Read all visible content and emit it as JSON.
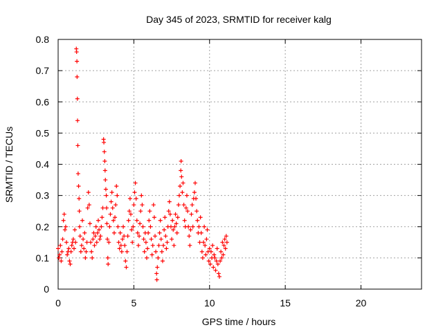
{
  "chart_data": {
    "type": "scatter",
    "title": "Day 345 of 2023, SRMTID for receiver kalg",
    "xlabel": "GPS time / hours",
    "ylabel": "SRMTID / TECUs",
    "xlim": [
      0,
      24
    ],
    "ylim": [
      0,
      0.8
    ],
    "xticks": [
      0,
      5,
      10,
      15,
      20
    ],
    "yticks": [
      0,
      0.1,
      0.2,
      0.3,
      0.4,
      0.5,
      0.6,
      0.7,
      0.8
    ],
    "grid": true,
    "marker": "+",
    "color": "#ff0000",
    "series": [
      {
        "name": "SRMTID",
        "points": [
          [
            0.0,
            0.13
          ],
          [
            0.05,
            0.1
          ],
          [
            0.1,
            0.11
          ],
          [
            0.15,
            0.14
          ],
          [
            0.2,
            0.09
          ],
          [
            0.25,
            0.12
          ],
          [
            0.3,
            0.16
          ],
          [
            0.35,
            0.22
          ],
          [
            0.4,
            0.24
          ],
          [
            0.45,
            0.19
          ],
          [
            0.5,
            0.2
          ],
          [
            0.55,
            0.15
          ],
          [
            0.6,
            0.11
          ],
          [
            0.65,
            0.12
          ],
          [
            0.7,
            0.13
          ],
          [
            0.75,
            0.09
          ],
          [
            0.8,
            0.08
          ],
          [
            0.85,
            0.12
          ],
          [
            0.9,
            0.14
          ],
          [
            0.95,
            0.15
          ],
          [
            1.0,
            0.16
          ],
          [
            1.05,
            0.13
          ],
          [
            1.1,
            0.19
          ],
          [
            1.15,
            0.15
          ],
          [
            1.2,
            0.77
          ],
          [
            1.22,
            0.76
          ],
          [
            1.24,
            0.73
          ],
          [
            1.25,
            0.68
          ],
          [
            1.27,
            0.61
          ],
          [
            1.28,
            0.54
          ],
          [
            1.3,
            0.46
          ],
          [
            1.32,
            0.37
          ],
          [
            1.35,
            0.33
          ],
          [
            1.38,
            0.29
          ],
          [
            1.4,
            0.25
          ],
          [
            1.42,
            0.2
          ],
          [
            1.45,
            0.17
          ],
          [
            1.5,
            0.12
          ],
          [
            1.55,
            0.14
          ],
          [
            1.6,
            0.22
          ],
          [
            1.65,
            0.16
          ],
          [
            1.7,
            0.13
          ],
          [
            1.75,
            0.18
          ],
          [
            1.8,
            0.1
          ],
          [
            1.85,
            0.12
          ],
          [
            1.9,
            0.15
          ],
          [
            1.95,
            0.26
          ],
          [
            2.0,
            0.31
          ],
          [
            2.05,
            0.27
          ],
          [
            2.1,
            0.21
          ],
          [
            2.15,
            0.15
          ],
          [
            2.2,
            0.12
          ],
          [
            2.25,
            0.1
          ],
          [
            2.3,
            0.16
          ],
          [
            2.35,
            0.18
          ],
          [
            2.4,
            0.14
          ],
          [
            2.45,
            0.17
          ],
          [
            2.5,
            0.2
          ],
          [
            2.55,
            0.15
          ],
          [
            2.6,
            0.18
          ],
          [
            2.65,
            0.22
          ],
          [
            2.7,
            0.19
          ],
          [
            2.75,
            0.16
          ],
          [
            2.8,
            0.17
          ],
          [
            2.85,
            0.2
          ],
          [
            2.9,
            0.23
          ],
          [
            2.95,
            0.26
          ],
          [
            3.0,
            0.48
          ],
          [
            3.02,
            0.47
          ],
          [
            3.05,
            0.44
          ],
          [
            3.08,
            0.41
          ],
          [
            3.1,
            0.38
          ],
          [
            3.12,
            0.35
          ],
          [
            3.15,
            0.32
          ],
          [
            3.18,
            0.3
          ],
          [
            3.2,
            0.26
          ],
          [
            3.22,
            0.21
          ],
          [
            3.25,
            0.16
          ],
          [
            3.28,
            0.1
          ],
          [
            3.3,
            0.08
          ],
          [
            3.35,
            0.15
          ],
          [
            3.4,
            0.2
          ],
          [
            3.45,
            0.24
          ],
          [
            3.5,
            0.28
          ],
          [
            3.55,
            0.31
          ],
          [
            3.6,
            0.26
          ],
          [
            3.65,
            0.22
          ],
          [
            3.7,
            0.18
          ],
          [
            3.75,
            0.23
          ],
          [
            3.8,
            0.27
          ],
          [
            3.85,
            0.33
          ],
          [
            3.9,
            0.3
          ],
          [
            3.95,
            0.2
          ],
          [
            4.0,
            0.15
          ],
          [
            4.05,
            0.13
          ],
          [
            4.1,
            0.18
          ],
          [
            4.15,
            0.14
          ],
          [
            4.2,
            0.12
          ],
          [
            4.25,
            0.16
          ],
          [
            4.3,
            0.2
          ],
          [
            4.35,
            0.17
          ],
          [
            4.4,
            0.14
          ],
          [
            4.45,
            0.09
          ],
          [
            4.5,
            0.07
          ],
          [
            4.55,
            0.12
          ],
          [
            4.6,
            0.17
          ],
          [
            4.65,
            0.22
          ],
          [
            4.7,
            0.25
          ],
          [
            4.75,
            0.29
          ],
          [
            4.8,
            0.24
          ],
          [
            4.85,
            0.19
          ],
          [
            4.9,
            0.15
          ],
          [
            4.95,
            0.2
          ],
          [
            5.0,
            0.27
          ],
          [
            5.05,
            0.31
          ],
          [
            5.1,
            0.34
          ],
          [
            5.15,
            0.29
          ],
          [
            5.2,
            0.22
          ],
          [
            5.25,
            0.18
          ],
          [
            5.3,
            0.14
          ],
          [
            5.35,
            0.17
          ],
          [
            5.4,
            0.21
          ],
          [
            5.45,
            0.25
          ],
          [
            5.5,
            0.3
          ],
          [
            5.55,
            0.27
          ],
          [
            5.6,
            0.2
          ],
          [
            5.65,
            0.16
          ],
          [
            5.7,
            0.12
          ],
          [
            5.75,
            0.18
          ],
          [
            5.8,
            0.15
          ],
          [
            5.85,
            0.1
          ],
          [
            5.9,
            0.13
          ],
          [
            5.95,
            0.18
          ],
          [
            6.0,
            0.22
          ],
          [
            6.05,
            0.25
          ],
          [
            6.1,
            0.2
          ],
          [
            6.15,
            0.16
          ],
          [
            6.2,
            0.11
          ],
          [
            6.25,
            0.14
          ],
          [
            6.3,
            0.27
          ],
          [
            6.35,
            0.23
          ],
          [
            6.4,
            0.17
          ],
          [
            6.45,
            0.12
          ],
          [
            6.5,
            0.05
          ],
          [
            6.52,
            0.03
          ],
          [
            6.55,
            0.07
          ],
          [
            6.6,
            0.1
          ],
          [
            6.65,
            0.14
          ],
          [
            6.7,
            0.18
          ],
          [
            6.75,
            0.22
          ],
          [
            6.8,
            0.16
          ],
          [
            6.85,
            0.12
          ],
          [
            6.9,
            0.09
          ],
          [
            6.95,
            0.14
          ],
          [
            7.0,
            0.19
          ],
          [
            7.05,
            0.23
          ],
          [
            7.1,
            0.17
          ],
          [
            7.15,
            0.13
          ],
          [
            7.2,
            0.15
          ],
          [
            7.25,
            0.2
          ],
          [
            7.3,
            0.25
          ],
          [
            7.35,
            0.28
          ],
          [
            7.4,
            0.24
          ],
          [
            7.45,
            0.2
          ],
          [
            7.5,
            0.16
          ],
          [
            7.55,
            0.22
          ],
          [
            7.6,
            0.19
          ],
          [
            7.65,
            0.14
          ],
          [
            7.7,
            0.2
          ],
          [
            7.75,
            0.24
          ],
          [
            7.8,
            0.21
          ],
          [
            7.85,
            0.18
          ],
          [
            7.9,
            0.23
          ],
          [
            7.95,
            0.27
          ],
          [
            8.0,
            0.3
          ],
          [
            8.05,
            0.33
          ],
          [
            8.1,
            0.38
          ],
          [
            8.12,
            0.41
          ],
          [
            8.15,
            0.36
          ],
          [
            8.2,
            0.31
          ],
          [
            8.25,
            0.34
          ],
          [
            8.3,
            0.27
          ],
          [
            8.35,
            0.22
          ],
          [
            8.4,
            0.2
          ],
          [
            8.45,
            0.26
          ],
          [
            8.5,
            0.3
          ],
          [
            8.55,
            0.25
          ],
          [
            8.6,
            0.2
          ],
          [
            8.65,
            0.17
          ],
          [
            8.7,
            0.14
          ],
          [
            8.75,
            0.19
          ],
          [
            8.8,
            0.24
          ],
          [
            8.85,
            0.27
          ],
          [
            8.9,
            0.2
          ],
          [
            8.95,
            0.29
          ],
          [
            9.0,
            0.31
          ],
          [
            9.05,
            0.34
          ],
          [
            9.1,
            0.29
          ],
          [
            9.15,
            0.25
          ],
          [
            9.2,
            0.22
          ],
          [
            9.25,
            0.18
          ],
          [
            9.3,
            0.2
          ],
          [
            9.35,
            0.15
          ],
          [
            9.4,
            0.23
          ],
          [
            9.45,
            0.18
          ],
          [
            9.5,
            0.12
          ],
          [
            9.55,
            0.1
          ],
          [
            9.6,
            0.15
          ],
          [
            9.65,
            0.2
          ],
          [
            9.7,
            0.14
          ],
          [
            9.75,
            0.11
          ],
          [
            9.8,
            0.16
          ],
          [
            9.85,
            0.19
          ],
          [
            9.9,
            0.12
          ],
          [
            9.95,
            0.09
          ],
          [
            10.0,
            0.13
          ],
          [
            10.05,
            0.08
          ],
          [
            10.1,
            0.12
          ],
          [
            10.15,
            0.1
          ],
          [
            10.2,
            0.14
          ],
          [
            10.25,
            0.07
          ],
          [
            10.3,
            0.11
          ],
          [
            10.35,
            0.1
          ],
          [
            10.4,
            0.06
          ],
          [
            10.45,
            0.09
          ],
          [
            10.5,
            0.13
          ],
          [
            10.55,
            0.08
          ],
          [
            10.6,
            0.05
          ],
          [
            10.65,
            0.04
          ],
          [
            10.7,
            0.09
          ],
          [
            10.75,
            0.12
          ],
          [
            10.8,
            0.1
          ],
          [
            10.85,
            0.15
          ],
          [
            10.9,
            0.11
          ],
          [
            10.95,
            0.14
          ],
          [
            11.0,
            0.16
          ],
          [
            11.05,
            0.13
          ],
          [
            11.1,
            0.17
          ],
          [
            11.15,
            0.15
          ]
        ]
      }
    ]
  }
}
